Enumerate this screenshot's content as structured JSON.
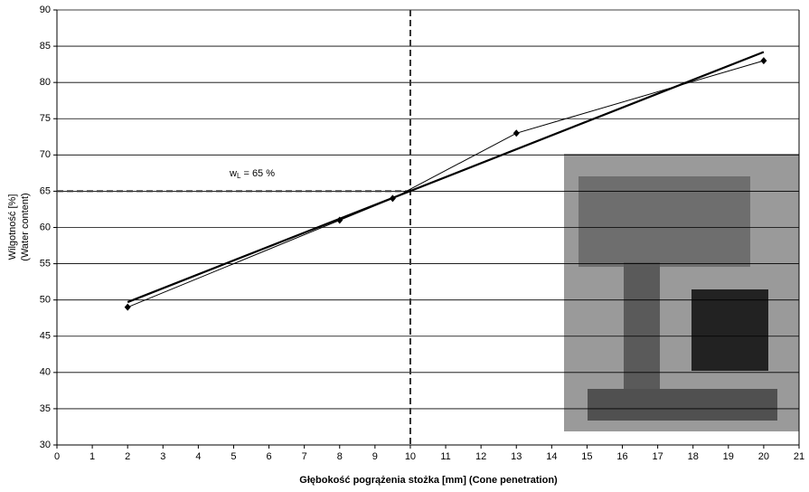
{
  "chart_data": {
    "type": "line",
    "x_label": "Głębokość pogrążenia stożka [mm] (Cone penetration)",
    "y_label": [
      "Wilgotność [%]",
      "(Water content)"
    ],
    "x": [
      2,
      8,
      9.5,
      13,
      20
    ],
    "series": [
      {
        "color": "#000000",
        "values": [
          49,
          61,
          64,
          73,
          83
        ],
        "marker": "diamond"
      }
    ],
    "trend": {
      "x": [
        2,
        20
      ],
      "values": [
        49.7,
        84.2
      ],
      "color": "#000000"
    },
    "reference": {
      "x": 10,
      "y": 65
    },
    "annotation": [
      "w",
      "L",
      " = 65 %"
    ],
    "xlim": [
      0,
      21
    ],
    "xticks": [
      0,
      1,
      2,
      3,
      4,
      5,
      6,
      7,
      8,
      9,
      10,
      11,
      12,
      13,
      14,
      15,
      16,
      17,
      18,
      19,
      20,
      21
    ],
    "ylim": [
      30,
      90
    ],
    "yticks": [
      30,
      35,
      40,
      45,
      50,
      55,
      60,
      65,
      70,
      75,
      80,
      85,
      90
    ],
    "grid": true
  }
}
